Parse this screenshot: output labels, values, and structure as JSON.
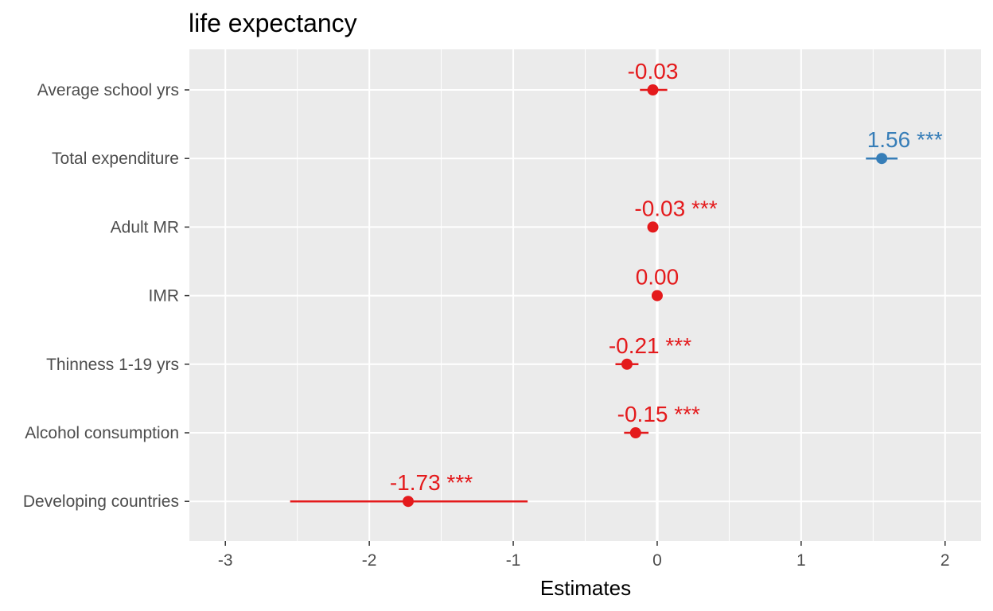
{
  "chart_data": {
    "type": "scatter",
    "title": "life expectancy",
    "xlabel": "Estimates",
    "ylabel": "",
    "xlim": [
      -3.25,
      2.25
    ],
    "xticks": [
      -3,
      -2,
      -1,
      0,
      1,
      2
    ],
    "grid": true,
    "legend": "none",
    "colors": {
      "positive": "#377eb8",
      "negative": "#e41a1c"
    },
    "terms": [
      {
        "term": "Average school yrs",
        "estimate": -0.03,
        "conf_low": -0.12,
        "conf_high": 0.07,
        "label": "-0.03"
      },
      {
        "term": "Total expenditure",
        "estimate": 1.56,
        "conf_low": 1.45,
        "conf_high": 1.67,
        "label": "1.56 ***"
      },
      {
        "term": "Adult MR",
        "estimate": -0.03,
        "conf_low": -0.03,
        "conf_high": -0.03,
        "label": "-0.03 ***"
      },
      {
        "term": "IMR",
        "estimate": 0.0,
        "conf_low": 0.0,
        "conf_high": 0.0,
        "label": "0.00"
      },
      {
        "term": "Thinness 1-19 yrs",
        "estimate": -0.21,
        "conf_low": -0.29,
        "conf_high": -0.13,
        "label": "-0.21 ***"
      },
      {
        "term": "Alcohol consumption",
        "estimate": -0.15,
        "conf_low": -0.23,
        "conf_high": -0.06,
        "label": "-0.15 ***"
      },
      {
        "term": "Developing countries",
        "estimate": -1.73,
        "conf_low": -2.55,
        "conf_high": -0.9,
        "label": "-1.73 ***"
      }
    ]
  }
}
